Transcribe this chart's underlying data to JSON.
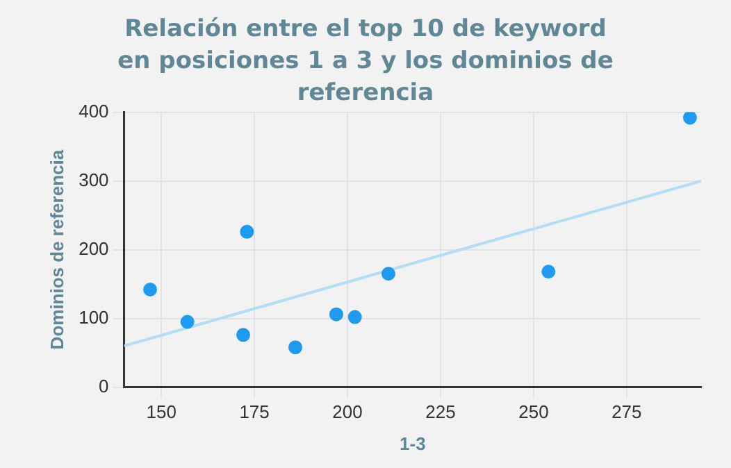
{
  "chart_data": {
    "type": "scatter",
    "title": "Relación entre el top 10 de keyword en posiciones 1 a 3 y los dominios de referencia",
    "xlabel": "1-3",
    "ylabel": "Dominios de referencia",
    "xlim": [
      140,
      295
    ],
    "xticks": [
      150,
      175,
      200,
      225,
      250,
      275
    ],
    "ylim": [
      0,
      400
    ],
    "yticks": [
      0,
      100,
      200,
      300,
      400
    ],
    "grid": true,
    "series": [
      {
        "marker": "circle",
        "color": "#1e9bf0",
        "x": [
          147,
          157,
          173,
          172,
          186,
          197,
          202,
          211,
          254,
          292
        ],
        "values": [
          142,
          95,
          226,
          76,
          58,
          106,
          102,
          165,
          168,
          392
        ]
      },
      {
        "type": "line",
        "marker": "none",
        "color": "#b3dcf5",
        "x": [
          140,
          295
        ],
        "values": [
          60,
          300
        ]
      }
    ]
  }
}
